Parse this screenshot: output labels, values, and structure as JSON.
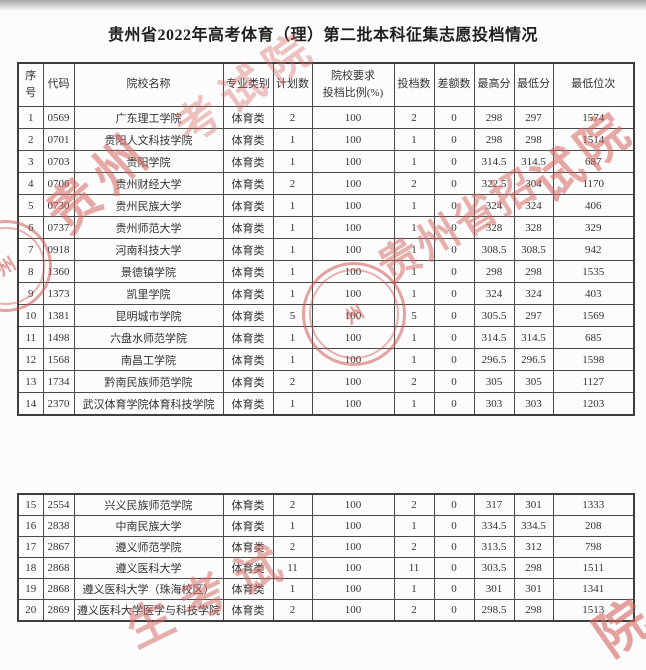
{
  "page": {
    "title": "贵州省2022年高考体育（理）第二批本科征集志愿投档情况"
  },
  "table": {
    "columns": [
      {
        "key": "xuhao",
        "label": "序号"
      },
      {
        "key": "daima",
        "label": "代码"
      },
      {
        "key": "yuanxiao",
        "label": "院校名称"
      },
      {
        "key": "leibie",
        "label": "专业类别"
      },
      {
        "key": "jihua",
        "label": "计划数"
      },
      {
        "key": "bili",
        "label": "院校要求\n投档比例(%)"
      },
      {
        "key": "toudang",
        "label": "投档数"
      },
      {
        "key": "chae",
        "label": "差额数"
      },
      {
        "key": "zuigao",
        "label": "最高分"
      },
      {
        "key": "zuidi",
        "label": "最低分"
      },
      {
        "key": "weici",
        "label": "最低位次"
      }
    ],
    "section_break": 14,
    "rows": [
      [
        "1",
        "0569",
        "广东理工学院",
        "体育类",
        "2",
        "100",
        "2",
        "0",
        "298",
        "297",
        "1574"
      ],
      [
        "2",
        "0701",
        "贵阳人文科技学院",
        "体育类",
        "1",
        "100",
        "1",
        "0",
        "298",
        "298",
        "1514"
      ],
      [
        "3",
        "0703",
        "贵阳学院",
        "体育类",
        "1",
        "100",
        "1",
        "0",
        "314.5",
        "314.5",
        "687"
      ],
      [
        "4",
        "0706",
        "贵州财经大学",
        "体育类",
        "2",
        "100",
        "2",
        "0",
        "322.5",
        "304",
        "1170"
      ],
      [
        "5",
        "0730",
        "贵州民族大学",
        "体育类",
        "1",
        "100",
        "1",
        "0",
        "324",
        "324",
        "406"
      ],
      [
        "6",
        "0737",
        "贵州师范大学",
        "体育类",
        "1",
        "100",
        "1",
        "0",
        "328",
        "328",
        "329"
      ],
      [
        "7",
        "0918",
        "河南科技大学",
        "体育类",
        "1",
        "100",
        "1",
        "0",
        "308.5",
        "308.5",
        "942"
      ],
      [
        "8",
        "1360",
        "景德镇学院",
        "体育类",
        "1",
        "100",
        "1",
        "0",
        "298",
        "298",
        "1535"
      ],
      [
        "9",
        "1373",
        "凯里学院",
        "体育类",
        "1",
        "100",
        "1",
        "0",
        "324",
        "324",
        "403"
      ],
      [
        "10",
        "1381",
        "昆明城市学院",
        "体育类",
        "5",
        "100",
        "5",
        "0",
        "305.5",
        "297",
        "1569"
      ],
      [
        "11",
        "1498",
        "六盘水师范学院",
        "体育类",
        "1",
        "100",
        "1",
        "0",
        "314.5",
        "314.5",
        "685"
      ],
      [
        "12",
        "1568",
        "南昌工学院",
        "体育类",
        "1",
        "100",
        "1",
        "0",
        "296.5",
        "296.5",
        "1598"
      ],
      [
        "13",
        "1734",
        "黔南民族师范学院",
        "体育类",
        "2",
        "100",
        "2",
        "0",
        "305",
        "305",
        "1127"
      ],
      [
        "14",
        "2370",
        "武汉体育学院体育科技学院",
        "体育类",
        "1",
        "100",
        "1",
        "0",
        "303",
        "303",
        "1203"
      ],
      [
        "15",
        "2554",
        "兴义民族师范学院",
        "体育类",
        "2",
        "100",
        "2",
        "0",
        "317",
        "301",
        "1333"
      ],
      [
        "16",
        "2838",
        "中南民族大学",
        "体育类",
        "1",
        "100",
        "1",
        "0",
        "334.5",
        "334.5",
        "208"
      ],
      [
        "17",
        "2867",
        "遵义师范学院",
        "体育类",
        "2",
        "100",
        "2",
        "0",
        "313.5",
        "312",
        "798"
      ],
      [
        "18",
        "2868",
        "遵义医科大学",
        "体育类",
        "11",
        "100",
        "11",
        "0",
        "303.5",
        "298",
        "1511"
      ],
      [
        "19",
        "2868",
        "遵义医科大学（珠海校区）",
        "体育类",
        "1",
        "100",
        "1",
        "0",
        "301",
        "301",
        "1341"
      ],
      [
        "20",
        "2869",
        "遵义医科大学医学与科技学院",
        "体育类",
        "2",
        "100",
        "2",
        "0",
        "298.5",
        "298",
        "1513"
      ]
    ]
  },
  "watermark": {
    "color": "#d4645e",
    "pieces": [
      "贵州",
      "考试院",
      "贵州省招",
      "试院",
      "生考试",
      "院"
    ],
    "seal_char": "州"
  }
}
